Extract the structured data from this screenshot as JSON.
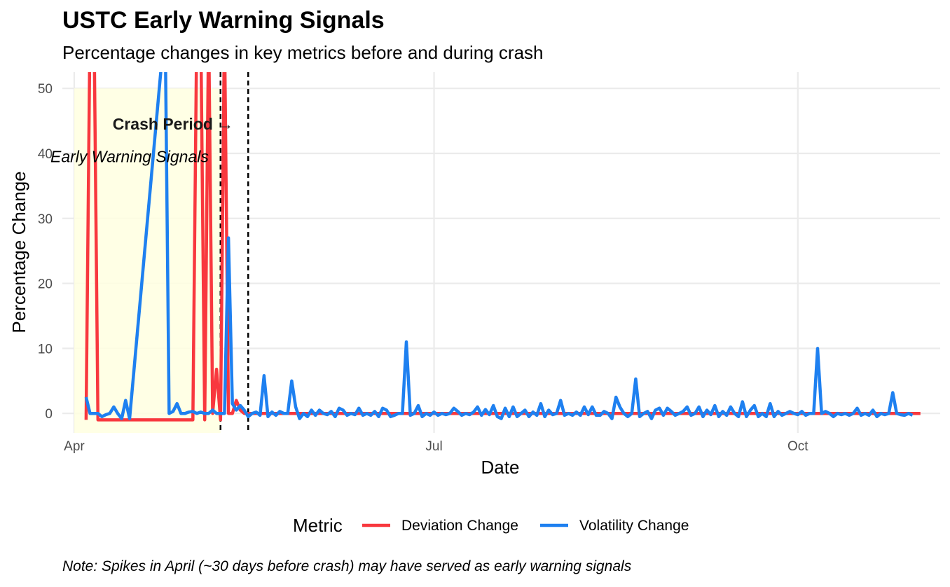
{
  "chart_data": {
    "type": "line",
    "title": "USTC Early Warning Signals",
    "subtitle": "Percentage changes in key metrics before and during crash",
    "xlabel": "Date",
    "ylabel": "Percentage Change",
    "caption": "Note: Spikes in April (~30 days before crash) may have served as early warning signals",
    "x_range": [
      "2022-03-29",
      "2022-11-06"
    ],
    "ylim": [
      -3,
      52.5
    ],
    "y_ticks": [
      0,
      10,
      20,
      30,
      40,
      50
    ],
    "x_ticks": [
      {
        "date": "2022-04-01",
        "label": "Apr"
      },
      {
        "date": "2022-07-01",
        "label": "Jul"
      },
      {
        "date": "2022-10-01",
        "label": "Oct"
      }
    ],
    "grid": true,
    "legend_position": "bottom",
    "legend_title": "Metric",
    "shaded_region": {
      "x": [
        "2022-04-01",
        "2022-05-08"
      ],
      "color": "#FFFFE0"
    },
    "vlines": [
      "2022-05-08",
      "2022-05-15"
    ],
    "annotations": [
      {
        "text": "Crash Period →",
        "x": "2022-04-26",
        "y": 44.5,
        "style": "bold"
      },
      {
        "text": "Early Warning Signals",
        "x": "2022-04-15",
        "y": 39.5,
        "style": "italic"
      }
    ],
    "series": [
      {
        "name": "Deviation Change",
        "color": "#F8383E",
        "points": [
          [
            "2022-04-04",
            -1.0
          ],
          [
            "2022-04-05",
            60.0
          ],
          [
            "2022-04-06",
            60.0
          ],
          [
            "2022-04-07",
            -1.0
          ],
          [
            "2022-04-08",
            -1.0
          ],
          [
            "2022-05-01",
            -1.0
          ],
          [
            "2022-05-02",
            60.0
          ],
          [
            "2022-05-03",
            60.0
          ],
          [
            "2022-05-04",
            -1.0
          ],
          [
            "2022-05-05",
            60.0
          ],
          [
            "2022-05-06",
            0.0
          ],
          [
            "2022-05-07",
            6.8
          ],
          [
            "2022-05-08",
            -1.0
          ],
          [
            "2022-05-09",
            60.0
          ],
          [
            "2022-05-10",
            0.0
          ],
          [
            "2022-05-11",
            0.0
          ],
          [
            "2022-05-12",
            2.0
          ],
          [
            "2022-05-13",
            0.5
          ],
          [
            "2022-05-14",
            0.0
          ],
          [
            "2022-11-01",
            0.0
          ]
        ]
      },
      {
        "name": "Volatility Change",
        "color": "#1E80F0",
        "points": [
          [
            "2022-04-04",
            2.5
          ],
          [
            "2022-04-05",
            0.0
          ],
          [
            "2022-04-06",
            0.0
          ],
          [
            "2022-04-07",
            0.0
          ],
          [
            "2022-04-08",
            -0.5
          ],
          [
            "2022-04-09",
            -0.2
          ],
          [
            "2022-04-10",
            0.0
          ],
          [
            "2022-04-11",
            1.0
          ],
          [
            "2022-04-12",
            0.0
          ],
          [
            "2022-04-13",
            -0.8
          ],
          [
            "2022-04-14",
            2.0
          ],
          [
            "2022-04-15",
            -0.8
          ],
          [
            "2022-04-24",
            60.0
          ],
          [
            "2022-04-25",
            0.0
          ],
          [
            "2022-04-26",
            0.3
          ],
          [
            "2022-04-27",
            1.5
          ],
          [
            "2022-04-28",
            0.0
          ],
          [
            "2022-04-29",
            0.0
          ],
          [
            "2022-04-30",
            0.2
          ],
          [
            "2022-05-01",
            0.3
          ],
          [
            "2022-05-02",
            0.0
          ],
          [
            "2022-05-03",
            0.2
          ],
          [
            "2022-05-04",
            0.0
          ],
          [
            "2022-05-05",
            0.0
          ],
          [
            "2022-05-06",
            0.5
          ],
          [
            "2022-05-07",
            0.0
          ],
          [
            "2022-05-08",
            0.0
          ],
          [
            "2022-05-09",
            0.0
          ],
          [
            "2022-05-10",
            27.0
          ],
          [
            "2022-05-11",
            1.5
          ],
          [
            "2022-05-12",
            0.5
          ],
          [
            "2022-05-13",
            1.2
          ],
          [
            "2022-05-14",
            0.5
          ],
          [
            "2022-05-15",
            -0.5
          ],
          [
            "2022-05-16",
            0.0
          ],
          [
            "2022-05-17",
            0.2
          ],
          [
            "2022-05-18",
            -0.3
          ],
          [
            "2022-05-19",
            5.8
          ],
          [
            "2022-05-20",
            -0.5
          ],
          [
            "2022-05-21",
            0.2
          ],
          [
            "2022-05-22",
            -0.3
          ],
          [
            "2022-05-23",
            0.3
          ],
          [
            "2022-05-24",
            0.0
          ],
          [
            "2022-05-25",
            0.0
          ],
          [
            "2022-05-26",
            5.0
          ],
          [
            "2022-05-27",
            1.0
          ],
          [
            "2022-05-28",
            -0.8
          ],
          [
            "2022-05-29",
            0.0
          ],
          [
            "2022-05-30",
            -0.5
          ],
          [
            "2022-05-31",
            0.5
          ],
          [
            "2022-06-01",
            -0.3
          ],
          [
            "2022-06-02",
            0.5
          ],
          [
            "2022-06-03",
            0.0
          ],
          [
            "2022-06-04",
            -0.2
          ],
          [
            "2022-06-05",
            0.3
          ],
          [
            "2022-06-06",
            -0.5
          ],
          [
            "2022-06-07",
            0.8
          ],
          [
            "2022-06-08",
            0.5
          ],
          [
            "2022-06-09",
            -0.3
          ],
          [
            "2022-06-10",
            0.0
          ],
          [
            "2022-06-11",
            -0.2
          ],
          [
            "2022-06-12",
            0.8
          ],
          [
            "2022-06-13",
            -0.3
          ],
          [
            "2022-06-14",
            0.0
          ],
          [
            "2022-06-15",
            -0.3
          ],
          [
            "2022-06-16",
            0.3
          ],
          [
            "2022-06-17",
            -0.5
          ],
          [
            "2022-06-18",
            0.8
          ],
          [
            "2022-06-19",
            0.5
          ],
          [
            "2022-06-20",
            -0.5
          ],
          [
            "2022-06-21",
            -0.3
          ],
          [
            "2022-06-22",
            0.0
          ],
          [
            "2022-06-23",
            0.0
          ],
          [
            "2022-06-24",
            11.0
          ],
          [
            "2022-06-25",
            -0.3
          ],
          [
            "2022-06-26",
            0.0
          ],
          [
            "2022-06-27",
            1.2
          ],
          [
            "2022-06-28",
            -0.5
          ],
          [
            "2022-06-29",
            0.0
          ],
          [
            "2022-06-30",
            -0.3
          ],
          [
            "2022-07-01",
            0.2
          ],
          [
            "2022-07-02",
            -0.3
          ],
          [
            "2022-07-03",
            0.0
          ],
          [
            "2022-07-04",
            -0.2
          ],
          [
            "2022-07-05",
            0.0
          ],
          [
            "2022-07-06",
            0.8
          ],
          [
            "2022-07-07",
            0.3
          ],
          [
            "2022-07-08",
            -0.3
          ],
          [
            "2022-07-09",
            0.0
          ],
          [
            "2022-07-10",
            -0.2
          ],
          [
            "2022-07-11",
            0.2
          ],
          [
            "2022-07-12",
            1.0
          ],
          [
            "2022-07-13",
            -0.3
          ],
          [
            "2022-07-14",
            0.6
          ],
          [
            "2022-07-15",
            -0.2
          ],
          [
            "2022-07-16",
            1.2
          ],
          [
            "2022-07-17",
            -0.5
          ],
          [
            "2022-07-18",
            -0.8
          ],
          [
            "2022-07-19",
            0.8
          ],
          [
            "2022-07-20",
            -0.5
          ],
          [
            "2022-07-21",
            1.0
          ],
          [
            "2022-07-22",
            -0.5
          ],
          [
            "2022-07-23",
            0.0
          ],
          [
            "2022-07-24",
            0.5
          ],
          [
            "2022-07-25",
            -0.5
          ],
          [
            "2022-07-26",
            0.2
          ],
          [
            "2022-07-27",
            -0.3
          ],
          [
            "2022-07-28",
            1.5
          ],
          [
            "2022-07-29",
            -0.5
          ],
          [
            "2022-07-30",
            0.5
          ],
          [
            "2022-07-31",
            -0.2
          ],
          [
            "2022-08-01",
            0.0
          ],
          [
            "2022-08-02",
            2.0
          ],
          [
            "2022-08-03",
            -0.3
          ],
          [
            "2022-08-04",
            0.0
          ],
          [
            "2022-08-05",
            -0.3
          ],
          [
            "2022-08-06",
            0.2
          ],
          [
            "2022-08-07",
            -0.3
          ],
          [
            "2022-08-08",
            1.0
          ],
          [
            "2022-08-09",
            -0.2
          ],
          [
            "2022-08-10",
            1.0
          ],
          [
            "2022-08-11",
            -0.3
          ],
          [
            "2022-08-12",
            -0.3
          ],
          [
            "2022-08-13",
            0.3
          ],
          [
            "2022-08-14",
            0.0
          ],
          [
            "2022-08-15",
            -0.8
          ],
          [
            "2022-08-16",
            2.5
          ],
          [
            "2022-08-17",
            1.0
          ],
          [
            "2022-08-18",
            0.0
          ],
          [
            "2022-08-19",
            -0.5
          ],
          [
            "2022-08-20",
            0.0
          ],
          [
            "2022-08-21",
            5.3
          ],
          [
            "2022-08-22",
            -0.5
          ],
          [
            "2022-08-23",
            0.0
          ],
          [
            "2022-08-24",
            0.3
          ],
          [
            "2022-08-25",
            -0.8
          ],
          [
            "2022-08-26",
            0.5
          ],
          [
            "2022-08-27",
            0.8
          ],
          [
            "2022-08-28",
            -0.3
          ],
          [
            "2022-08-29",
            0.8
          ],
          [
            "2022-08-30",
            0.3
          ],
          [
            "2022-08-31",
            -0.3
          ],
          [
            "2022-09-01",
            0.0
          ],
          [
            "2022-09-02",
            0.3
          ],
          [
            "2022-09-03",
            1.0
          ],
          [
            "2022-09-04",
            -0.3
          ],
          [
            "2022-09-05",
            0.0
          ],
          [
            "2022-09-06",
            1.0
          ],
          [
            "2022-09-07",
            -0.5
          ],
          [
            "2022-09-08",
            0.5
          ],
          [
            "2022-09-09",
            -0.2
          ],
          [
            "2022-09-10",
            1.2
          ],
          [
            "2022-09-11",
            -0.5
          ],
          [
            "2022-09-12",
            0.3
          ],
          [
            "2022-09-13",
            -0.3
          ],
          [
            "2022-09-14",
            1.0
          ],
          [
            "2022-09-15",
            0.0
          ],
          [
            "2022-09-16",
            -0.5
          ],
          [
            "2022-09-17",
            1.8
          ],
          [
            "2022-09-18",
            -0.5
          ],
          [
            "2022-09-19",
            0.5
          ],
          [
            "2022-09-20",
            1.2
          ],
          [
            "2022-09-21",
            -0.5
          ],
          [
            "2022-09-22",
            0.0
          ],
          [
            "2022-09-23",
            -0.5
          ],
          [
            "2022-09-24",
            1.5
          ],
          [
            "2022-09-25",
            -0.5
          ],
          [
            "2022-09-26",
            0.3
          ],
          [
            "2022-09-27",
            -0.3
          ],
          [
            "2022-09-28",
            0.0
          ],
          [
            "2022-09-29",
            0.3
          ],
          [
            "2022-09-30",
            0.0
          ],
          [
            "2022-10-01",
            -0.2
          ],
          [
            "2022-10-02",
            0.3
          ],
          [
            "2022-10-03",
            -0.3
          ],
          [
            "2022-10-04",
            0.0
          ],
          [
            "2022-10-05",
            0.0
          ],
          [
            "2022-10-06",
            10.0
          ],
          [
            "2022-10-07",
            0.0
          ],
          [
            "2022-10-08",
            0.3
          ],
          [
            "2022-10-09",
            0.0
          ],
          [
            "2022-10-10",
            -0.5
          ],
          [
            "2022-10-11",
            0.0
          ],
          [
            "2022-10-12",
            -0.2
          ],
          [
            "2022-10-13",
            0.0
          ],
          [
            "2022-10-14",
            -0.3
          ],
          [
            "2022-10-15",
            0.0
          ],
          [
            "2022-10-16",
            0.8
          ],
          [
            "2022-10-17",
            -0.3
          ],
          [
            "2022-10-18",
            0.0
          ],
          [
            "2022-10-19",
            -0.3
          ],
          [
            "2022-10-20",
            0.5
          ],
          [
            "2022-10-21",
            -0.5
          ],
          [
            "2022-10-22",
            0.0
          ],
          [
            "2022-10-23",
            -0.2
          ],
          [
            "2022-10-24",
            0.0
          ],
          [
            "2022-10-25",
            3.2
          ],
          [
            "2022-10-26",
            0.0
          ],
          [
            "2022-10-27",
            -0.2
          ],
          [
            "2022-10-28",
            -0.3
          ],
          [
            "2022-10-29",
            0.0
          ],
          [
            "2022-10-30",
            -0.3
          ]
        ]
      }
    ]
  }
}
